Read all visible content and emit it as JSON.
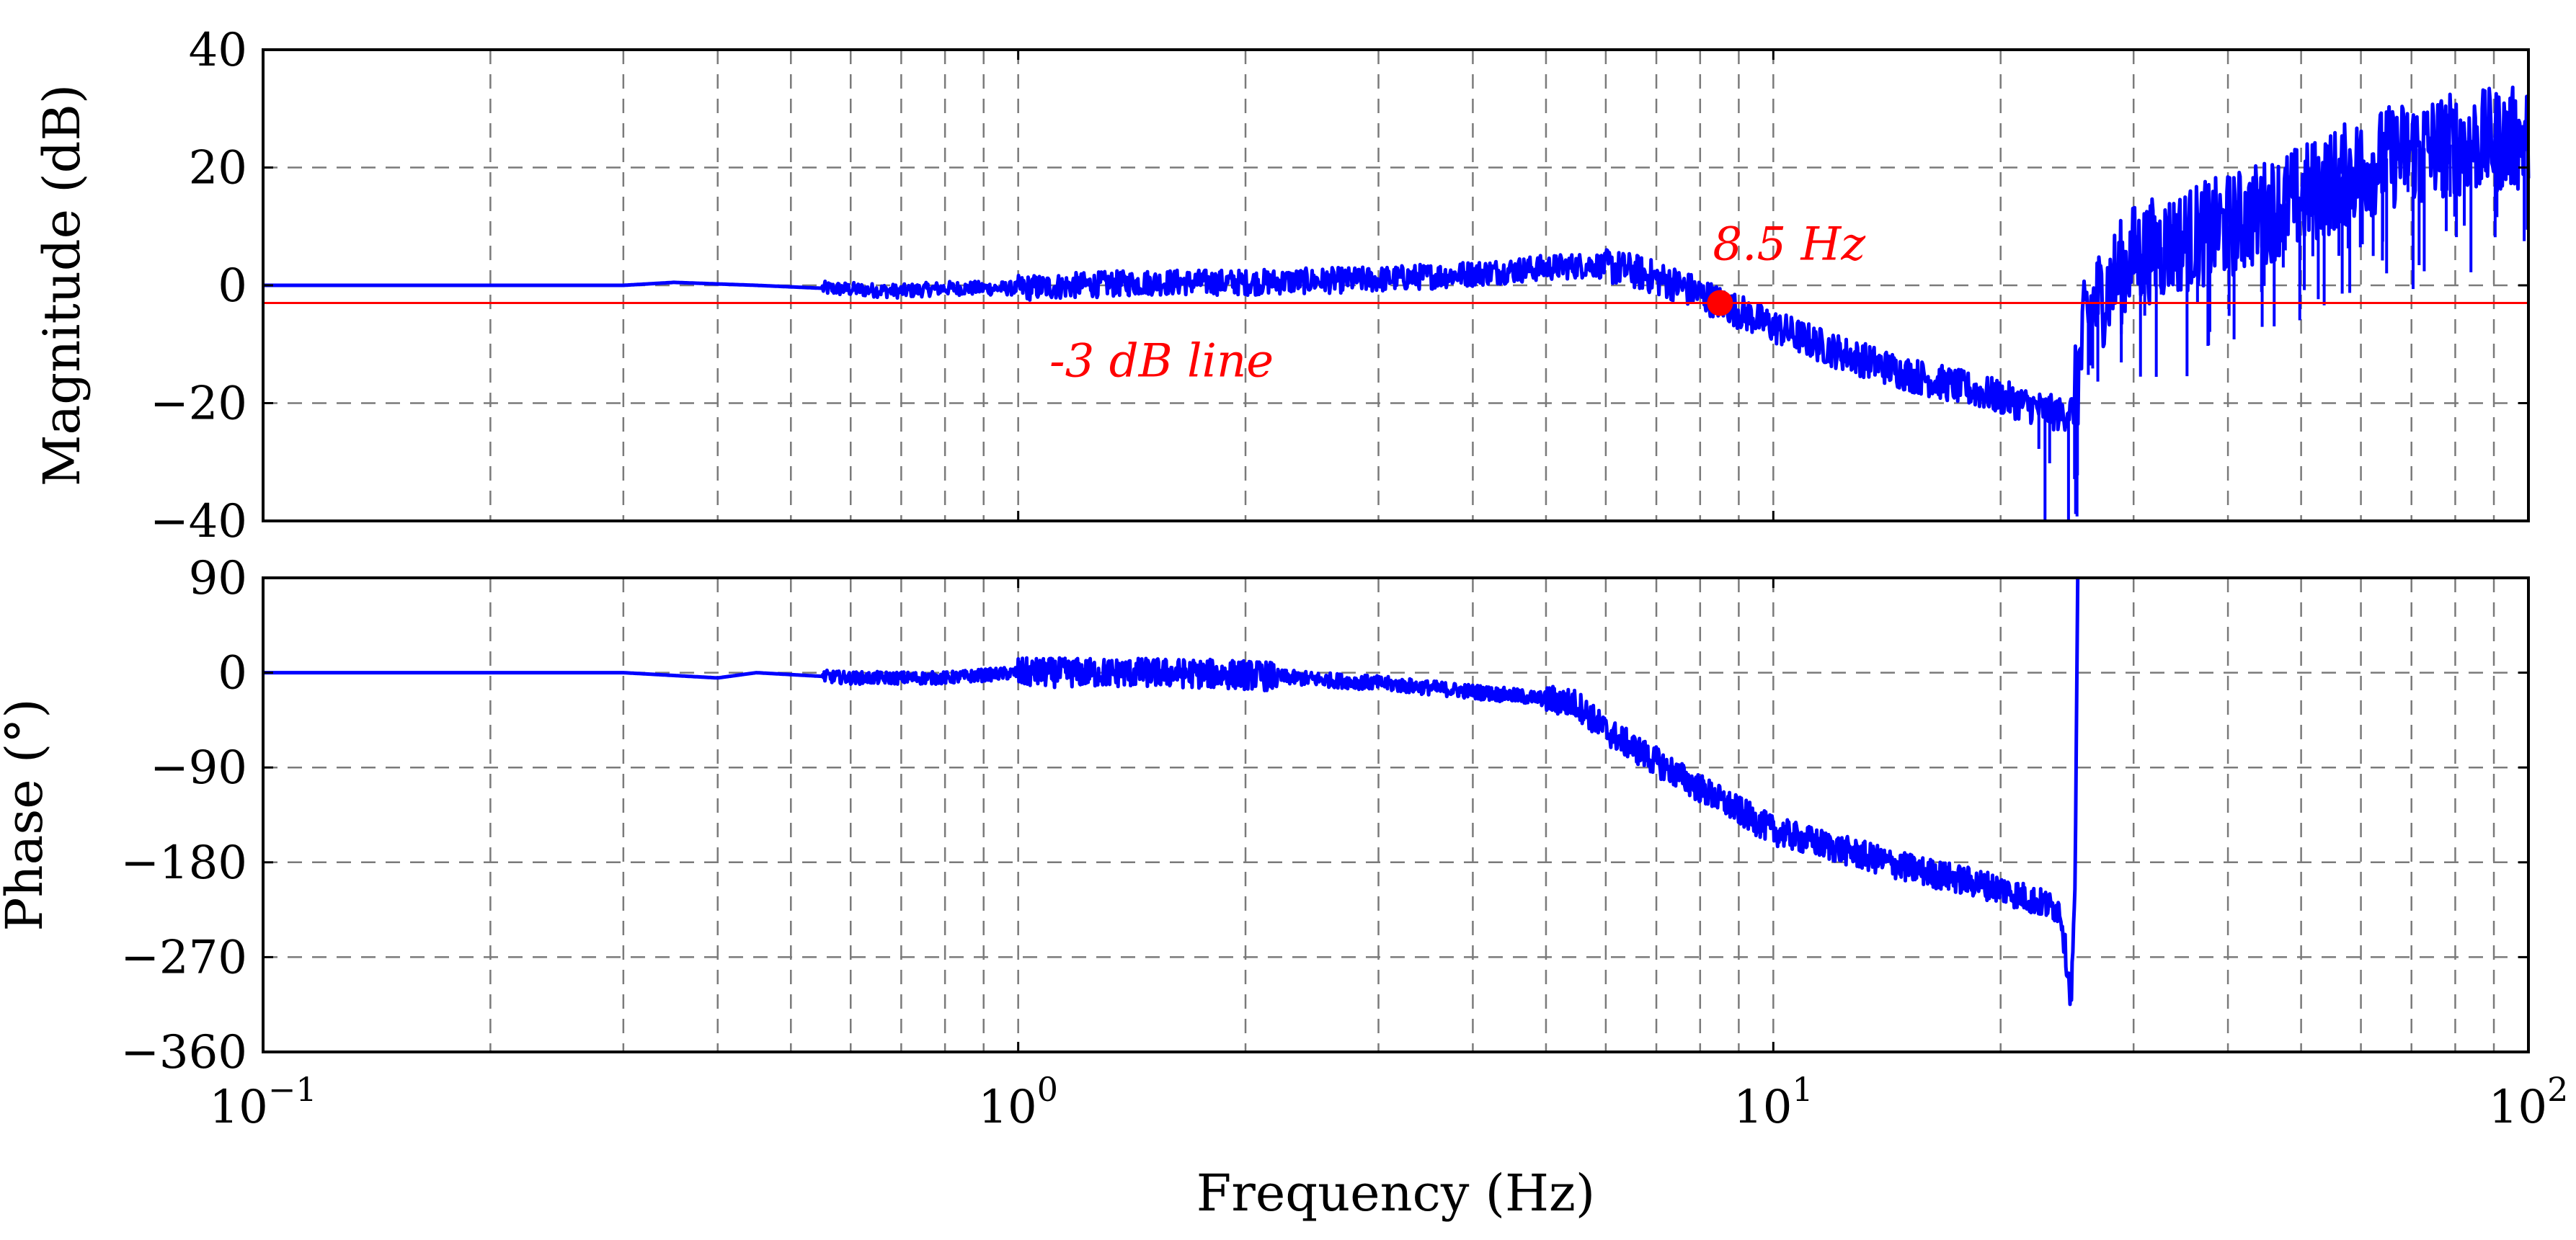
{
  "chart_data": [
    {
      "type": "line",
      "panel": "magnitude",
      "xscale": "log",
      "xlim": [
        0.1,
        100
      ],
      "ylim": [
        -40,
        40
      ],
      "ylabel": "Magnitude (dB)",
      "yticks": [
        -40,
        -20,
        0,
        20,
        40
      ],
      "ytick_labels": [
        "−40",
        "−20",
        "0",
        "20",
        "40"
      ],
      "grid": true,
      "series": [
        {
          "name": "magnitude",
          "color": "#0000ff",
          "noise_regions": [
            [
              0.55,
              100
            ]
          ],
          "x": [
            0.1,
            0.2,
            0.3,
            0.35,
            0.45,
            0.55,
            0.7,
            0.8,
            1.0,
            1.2,
            1.5,
            2.0,
            3.0,
            4.0,
            5.0,
            5.8,
            6.5,
            7.5,
            8.5,
            10.0,
            12.0,
            15.0,
            20.0,
            24.0,
            25.0,
            26.0,
            30.0,
            40.0,
            50.0,
            60.0,
            70.0,
            80.0,
            100.0
          ],
          "y": [
            0,
            0,
            0,
            0.5,
            0,
            -0.5,
            -1,
            -0.5,
            -0.5,
            0,
            0.5,
            0.5,
            1,
            2,
            3,
            3.5,
            2.5,
            0,
            -3,
            -7,
            -11,
            -15,
            -19,
            -22,
            -21,
            -5,
            5,
            10,
            15,
            20,
            23,
            24,
            25
          ]
        }
      ],
      "reference_line": {
        "y": -3,
        "color": "#ff0000",
        "label": "-3 dB line"
      },
      "marker": {
        "x": 8.5,
        "y": -3,
        "color": "#ff0000",
        "label": "8.5 Hz"
      }
    },
    {
      "type": "line",
      "panel": "phase",
      "xscale": "log",
      "xlim": [
        0.1,
        100
      ],
      "ylim": [
        -360,
        90
      ],
      "ylabel": "Phase (°)",
      "xlabel": "Frequency (Hz)",
      "yticks": [
        -360,
        -270,
        -180,
        -90,
        0,
        90
      ],
      "ytick_labels": [
        "−360",
        "−270",
        "−180",
        "−90",
        "0",
        "90"
      ],
      "xticks": [
        0.1,
        1,
        10,
        100
      ],
      "xtick_labels": [
        {
          "base": "10",
          "exp": "−1"
        },
        {
          "base": "10",
          "exp": "0"
        },
        {
          "base": "10",
          "exp": "1"
        },
        {
          "base": "10",
          "exp": "2"
        }
      ],
      "grid": true,
      "series": [
        {
          "name": "phase",
          "color": "#0000ff",
          "noise_regions": [
            [
              0.55,
              25
            ]
          ],
          "x": [
            0.1,
            0.3,
            0.4,
            0.45,
            0.6,
            0.8,
            1.0,
            1.5,
            2.0,
            3.0,
            4.0,
            5.0,
            5.5,
            6.0,
            8.0,
            10.0,
            15.0,
            20.0,
            24.0,
            24.8,
            25.1,
            25.3
          ],
          "y": [
            0,
            0,
            -5,
            0,
            -5,
            -5,
            0,
            0,
            -2,
            -10,
            -18,
            -25,
            -30,
            -55,
            -110,
            -150,
            -185,
            -205,
            -225,
            -310,
            -200,
            90
          ]
        }
      ]
    }
  ]
}
